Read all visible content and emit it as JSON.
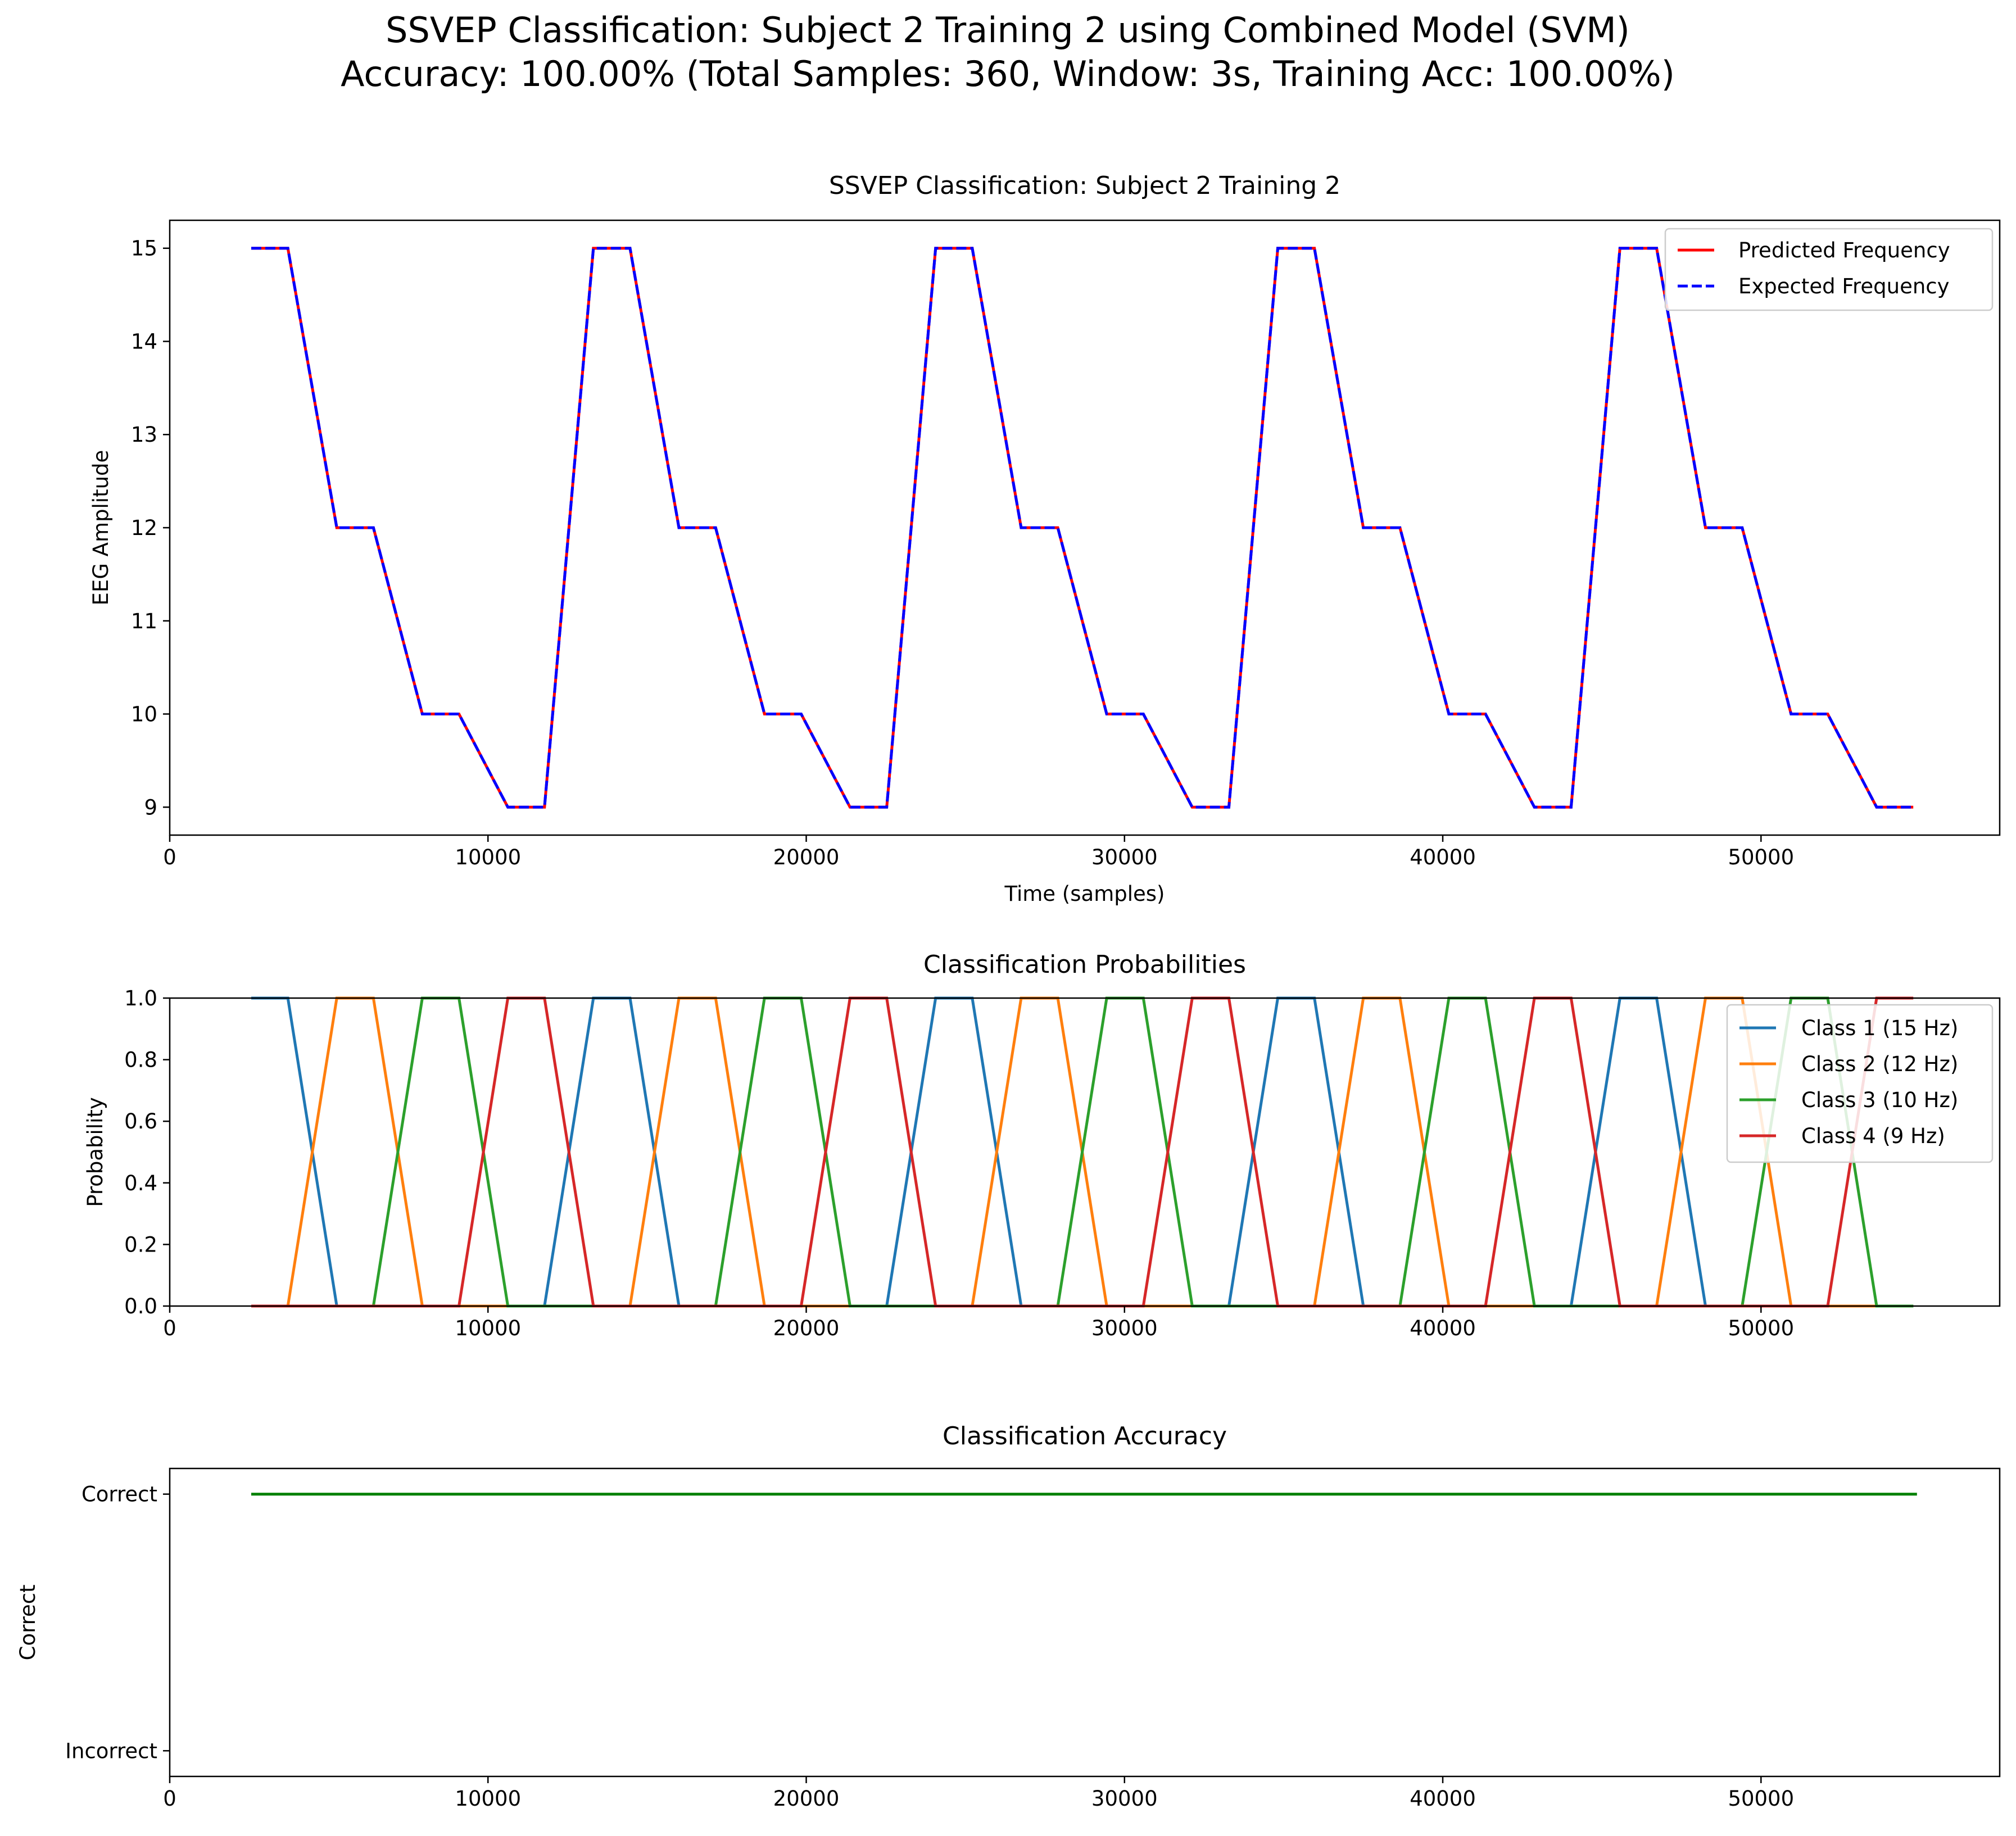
{
  "figure": {
    "title_line1": "SSVEP Classification: Subject 2 Training 2 using Combined Model (SVM)",
    "title_line2": "Accuracy: 100.00% (Total Samples: 360, Window: 3s, Training Acc: 100.00%)"
  },
  "chart_data": [
    {
      "id": "frequency",
      "type": "line",
      "title": "SSVEP Classification: Subject 2 Training 2",
      "xlabel": "Time (samples)",
      "ylabel": "EEG Amplitude",
      "xlim": [
        0,
        57500
      ],
      "ylim": [
        8.7,
        15.3
      ],
      "xticks": [
        0,
        10000,
        20000,
        30000,
        40000,
        50000
      ],
      "yticks": [
        9,
        10,
        11,
        12,
        13,
        14,
        15
      ],
      "grid": false,
      "legend": "top-right",
      "trial_start": 2560,
      "trial_step": 10752,
      "window_len": 1152,
      "stim_step": 2688,
      "levels": [
        15,
        12,
        10,
        9
      ],
      "last_x": 54900,
      "series": [
        {
          "name": "Predicted Frequency",
          "color": "#ff0000",
          "style": "solid"
        },
        {
          "name": "Expected Frequency",
          "color": "#0000ff",
          "style": "dashed"
        }
      ]
    },
    {
      "id": "probabilities",
      "type": "line",
      "title": "Classification Probabilities",
      "xlabel": "",
      "ylabel": "Probability",
      "xlim": [
        0,
        57500
      ],
      "ylim": [
        0,
        1
      ],
      "xticks": [
        0,
        10000,
        20000,
        30000,
        40000,
        50000
      ],
      "yticks": [
        0.0,
        0.2,
        0.4,
        0.6,
        0.8,
        1.0
      ],
      "ytick_labels": [
        "0.0",
        "0.2",
        "0.4",
        "0.6",
        "0.8",
        "1.0"
      ],
      "grid": false,
      "legend": "top-right",
      "series": [
        {
          "name": "Class 1 (15 Hz)",
          "color": "#1f77b4",
          "class_index": 0
        },
        {
          "name": "Class 2 (12 Hz)",
          "color": "#ff7f0e",
          "class_index": 1
        },
        {
          "name": "Class 3 (10 Hz)",
          "color": "#2ca02c",
          "class_index": 2
        },
        {
          "name": "Class 4 (9 Hz)",
          "color": "#d62728",
          "class_index": 3
        }
      ]
    },
    {
      "id": "accuracy",
      "type": "line",
      "title": "Classification Accuracy",
      "xlabel": "",
      "ylabel": "Correct",
      "xlim": [
        0,
        57500
      ],
      "ylim": [
        -0.1,
        1.1
      ],
      "xticks": [
        0,
        10000,
        20000,
        30000,
        40000,
        50000
      ],
      "yticks": [
        0,
        1
      ],
      "ytick_labels": [
        "Incorrect",
        "Correct"
      ],
      "grid": false,
      "series": [
        {
          "name": "",
          "color": "#008000",
          "x": [
            2560,
            54900
          ],
          "y": [
            1,
            1
          ]
        }
      ]
    }
  ]
}
